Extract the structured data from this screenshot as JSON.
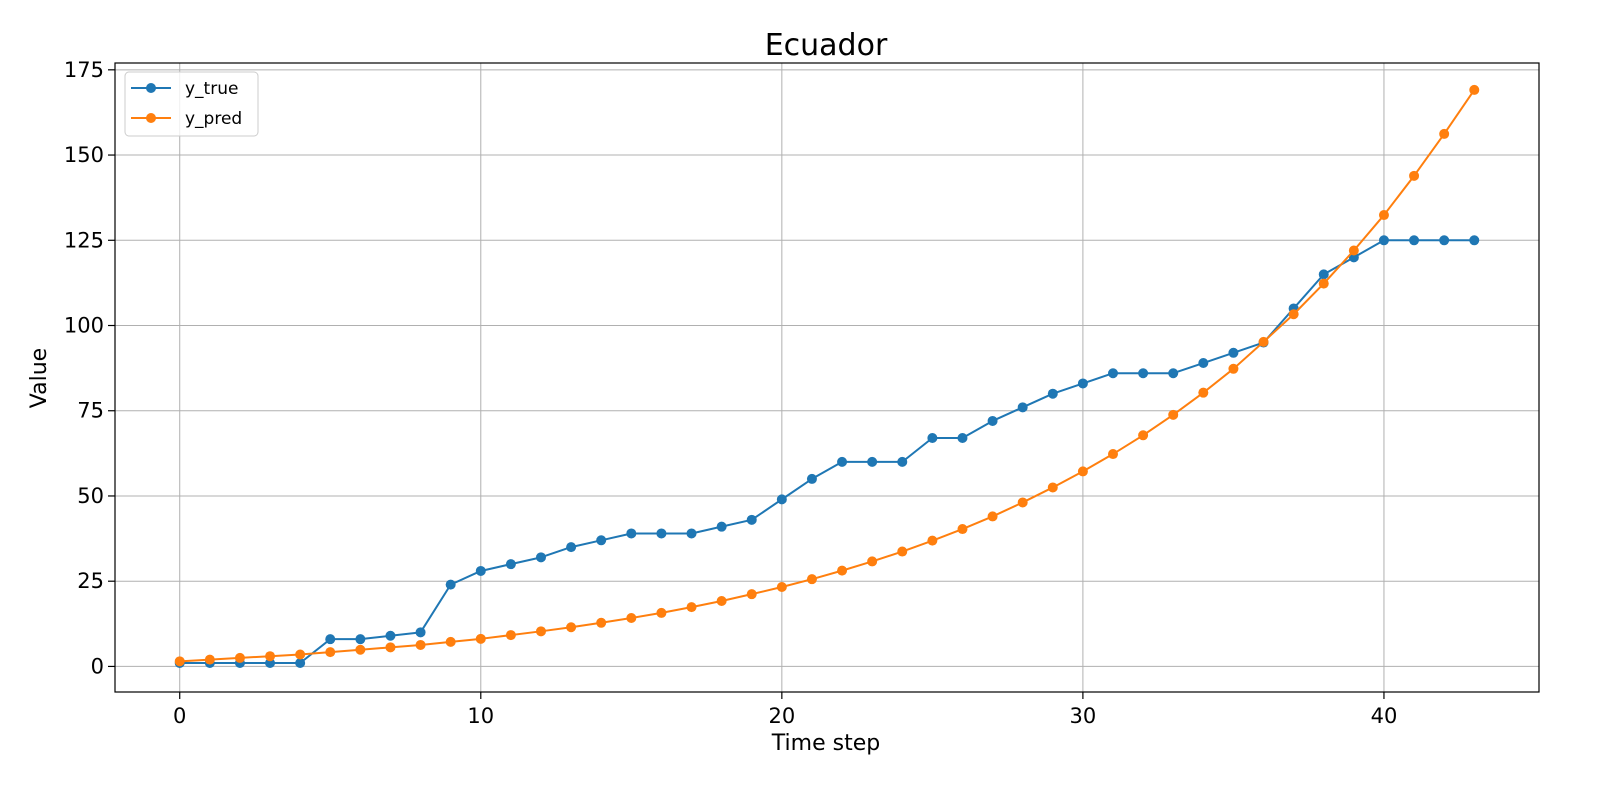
{
  "chart_data": {
    "type": "line",
    "title": "Ecuador",
    "xlabel": "Time step",
    "ylabel": "Value",
    "xlim": [
      -2.15,
      45.15
    ],
    "ylim": [
      -7.5,
      177
    ],
    "xticks": [
      0,
      10,
      20,
      30,
      40
    ],
    "yticks": [
      0,
      25,
      50,
      75,
      100,
      125,
      150,
      175
    ],
    "grid": true,
    "legend_position": "upper left",
    "x": [
      0,
      1,
      2,
      3,
      4,
      5,
      6,
      7,
      8,
      9,
      10,
      11,
      12,
      13,
      14,
      15,
      16,
      17,
      18,
      19,
      20,
      21,
      22,
      23,
      24,
      25,
      26,
      27,
      28,
      29,
      30,
      31,
      32,
      33,
      34,
      35,
      36,
      37,
      38,
      39,
      40,
      41,
      42,
      43
    ],
    "series": [
      {
        "name": "y_true",
        "color": "#1f77b4",
        "marker": "circle",
        "values": [
          1,
          1,
          1,
          1,
          1,
          8,
          8,
          9,
          10,
          24,
          28,
          30,
          32,
          35,
          37,
          39,
          39,
          39,
          41,
          43,
          49,
          55,
          60,
          60,
          60,
          67,
          67,
          72,
          76,
          80,
          83,
          86,
          86,
          86,
          89,
          92,
          95,
          105,
          115,
          120,
          125,
          125,
          125,
          125
        ]
      },
      {
        "name": "y_pred",
        "color": "#ff7f0e",
        "marker": "circle",
        "values": [
          1.5,
          2,
          2.5,
          3,
          3.5,
          4.2,
          4.9,
          5.6,
          6.3,
          7.2,
          8.1,
          9.2,
          10.3,
          11.5,
          12.8,
          14.2,
          15.7,
          17.4,
          19.2,
          21.2,
          23.3,
          25.6,
          28.1,
          30.8,
          33.7,
          36.9,
          40.3,
          44,
          48.1,
          52.5,
          57.2,
          62.3,
          67.8,
          73.8,
          80.3,
          87.3,
          95.2,
          103.3,
          112.3,
          122,
          132.4,
          143.9,
          156.2,
          169.1
        ]
      }
    ]
  }
}
